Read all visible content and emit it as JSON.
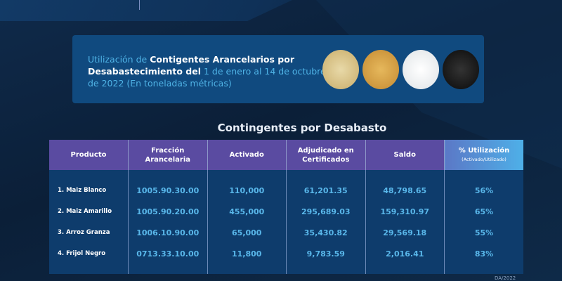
{
  "info_box": {
    "text_part1": "Utilización de ",
    "text_bold1": "Contigentes Arancelarios por Desabastecimiento del",
    "text_part2": " 1 de enero al 14 de octubre de 2022 (En toneladas métricas)",
    "images": [
      "maiz-blanco",
      "maiz-amarillo",
      "arroz",
      "frijol-negro"
    ]
  },
  "table_title": "Contingentes por Desabasto",
  "table": {
    "headers": [
      "Producto",
      "Fracción Arancelaria",
      "Activado",
      "Adjudicado en Certificados",
      "Saldo",
      "% Utilización"
    ],
    "header_sub": "(Activado/Utilizado)",
    "rows": [
      [
        "1. Maiz Blanco",
        "1005.90.30.00",
        "110,000",
        "61,201.35",
        "48,798.65",
        "56%"
      ],
      [
        "2. Maiz Amarillo",
        "1005.90.20.00",
        "455,000",
        "295,689.03",
        "159,310.97",
        "65%"
      ],
      [
        "3. Arroz Granza",
        "1006.10.90.00",
        "65,000",
        "35,430.82",
        "29,569.18",
        "55%"
      ],
      [
        "4. Frijol Negro",
        "0713.33.10.00",
        "11,800",
        "9,783.59",
        "2,016.41",
        "83%"
      ]
    ]
  },
  "footer": "DA/2022",
  "colors": {
    "accent": "#4fb3e6",
    "header": "#5a4ba1",
    "background": "#0d2038"
  }
}
